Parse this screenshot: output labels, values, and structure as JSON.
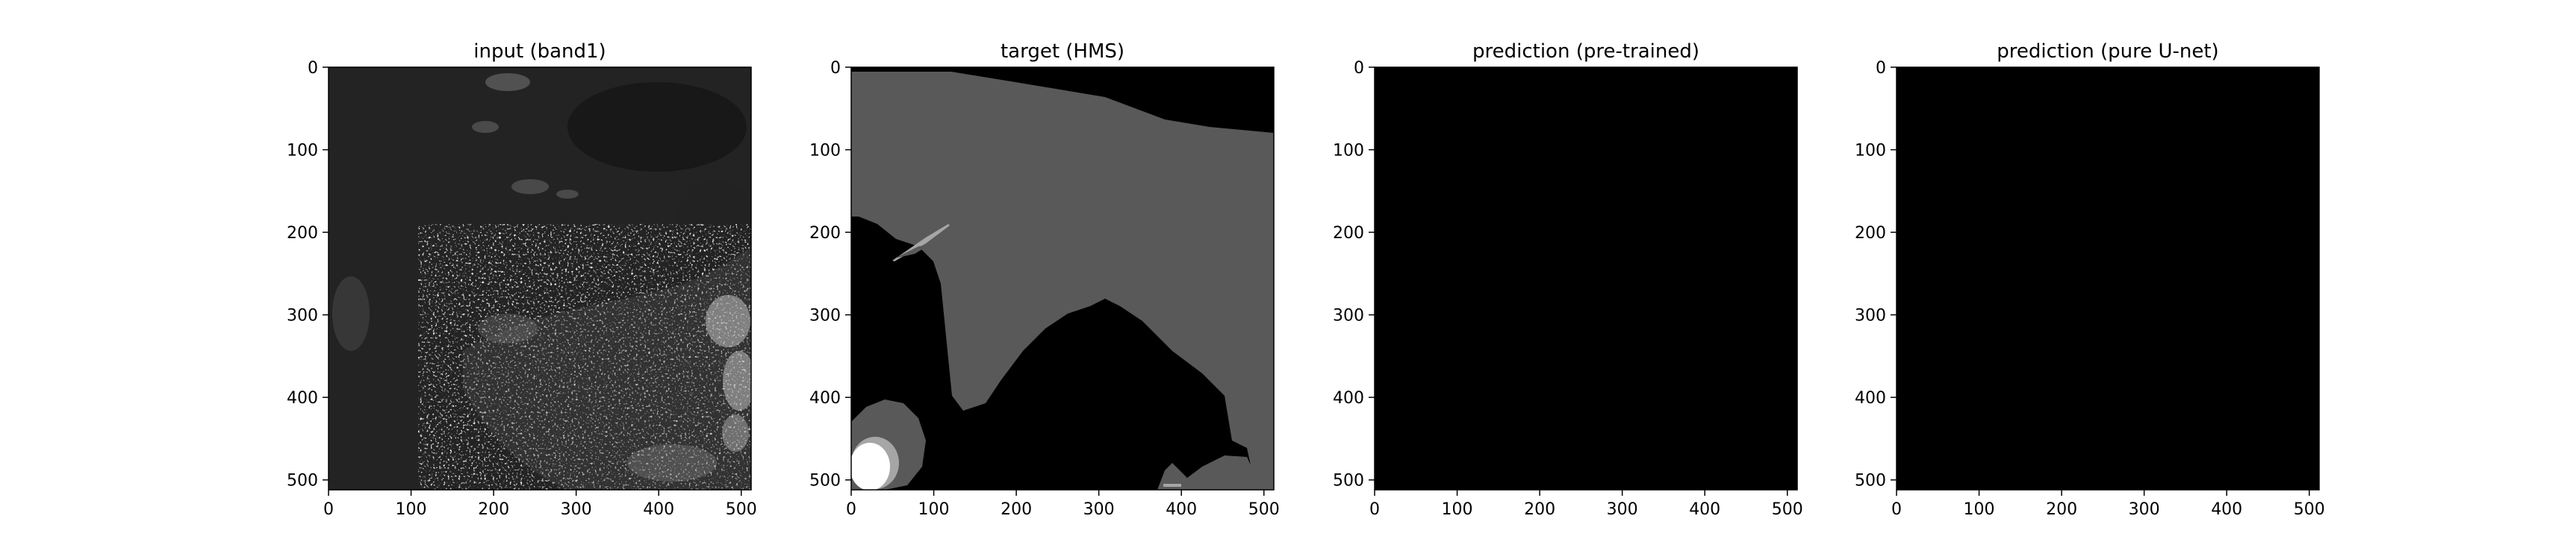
{
  "figure": {
    "background": "#ffffff",
    "panel_count": 4
  },
  "chart_data": [
    {
      "type": "heatmap",
      "title": "input (band1)",
      "content": "grayscale satellite image: dark ocean with bright speckled clouds in the lower and right portions",
      "colormap": "gray",
      "xlim": [
        0,
        512
      ],
      "ylim": [
        512,
        0
      ],
      "xticks": [
        0,
        100,
        200,
        300,
        400,
        500
      ],
      "yticks": [
        0,
        100,
        200,
        300,
        400,
        500
      ]
    },
    {
      "type": "heatmap",
      "title": "target (HMS)",
      "content": "segmentation mask: black background, large gray (light smoke) region, small white (heavy smoke) blob near bottom-left",
      "colormap": "gray",
      "classes": [
        {
          "level": "none",
          "color": "#000000"
        },
        {
          "level": "light",
          "color": "#595959"
        },
        {
          "level": "medium",
          "color": "#a6a6a6"
        },
        {
          "level": "heavy",
          "color": "#ffffff"
        }
      ],
      "xlim": [
        0,
        512
      ],
      "ylim": [
        512,
        0
      ],
      "xticks": [
        0,
        100,
        200,
        300,
        400,
        500
      ],
      "yticks": [
        0,
        100,
        200,
        300,
        400,
        500
      ]
    },
    {
      "type": "heatmap",
      "title": "prediction (pre-trained)",
      "content": "all-black mask (no smoke predicted)",
      "colormap": "gray",
      "xlim": [
        0,
        512
      ],
      "ylim": [
        512,
        0
      ],
      "xticks": [
        0,
        100,
        200,
        300,
        400,
        500
      ],
      "yticks": [
        0,
        100,
        200,
        300,
        400,
        500
      ]
    },
    {
      "type": "heatmap",
      "title": "prediction (pure U-net)",
      "content": "all-black mask (no smoke predicted)",
      "colormap": "gray",
      "xlim": [
        0,
        512
      ],
      "ylim": [
        512,
        0
      ],
      "xticks": [
        0,
        100,
        200,
        300,
        400,
        500
      ],
      "yticks": [
        0,
        100,
        200,
        300,
        400,
        500
      ]
    }
  ]
}
